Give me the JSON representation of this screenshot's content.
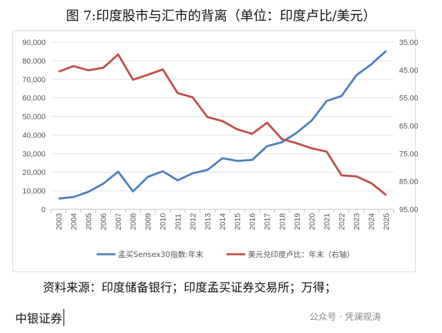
{
  "title": "图 7:印度股市与汇市的背离（单位：印度卢比/美元）",
  "source_line1": "资料来源：印度储备银行；印度孟买证券交易所；万得；",
  "source_line2": "中银证券",
  "watermark": "公众号 · 凭澜观涛",
  "chart_data": {
    "type": "line",
    "title": "",
    "categories": [
      "2003",
      "2004",
      "2005",
      "2006",
      "2007",
      "2008",
      "2009",
      "2010",
      "2011",
      "2012",
      "2013",
      "2014",
      "2015",
      "2016",
      "2017",
      "2018",
      "2019",
      "2020",
      "2021",
      "2022",
      "2023",
      "2024",
      "2025"
    ],
    "left_axis": {
      "ylim": [
        0,
        90000
      ],
      "ticks": [
        "0",
        "10,000",
        "20,000",
        "30,000",
        "40,000",
        "50,000",
        "60,000",
        "70,000",
        "80,000",
        "90,000"
      ]
    },
    "right_axis": {
      "ylim": [
        35,
        95
      ],
      "inverted": true,
      "ticks": [
        "35.00",
        "45.00",
        "55.00",
        "65.00",
        "75.00",
        "85.00",
        "95.00"
      ]
    },
    "grid": true,
    "legend": "bottom",
    "series": [
      {
        "name": "孟买Sensex30指数:年末",
        "axis": "left",
        "color": "#4f7fbf",
        "values": [
          5800,
          6600,
          9400,
          13800,
          20300,
          9650,
          17500,
          20500,
          15600,
          19400,
          21200,
          27500,
          26100,
          26600,
          34000,
          36100,
          41300,
          47800,
          58300,
          61000,
          72200,
          78100,
          85300
        ]
      },
      {
        "name": "美元兑印度卢比：年末（右轴）",
        "axis": "right",
        "color": "#c0504d",
        "values": [
          45.6,
          43.6,
          45.1,
          44.2,
          39.4,
          48.5,
          46.7,
          44.8,
          53.3,
          54.8,
          61.9,
          63.3,
          66.3,
          67.9,
          63.9,
          69.8,
          71.3,
          73.1,
          74.3,
          82.8,
          83.2,
          85.6,
          89.9
        ]
      }
    ]
  }
}
